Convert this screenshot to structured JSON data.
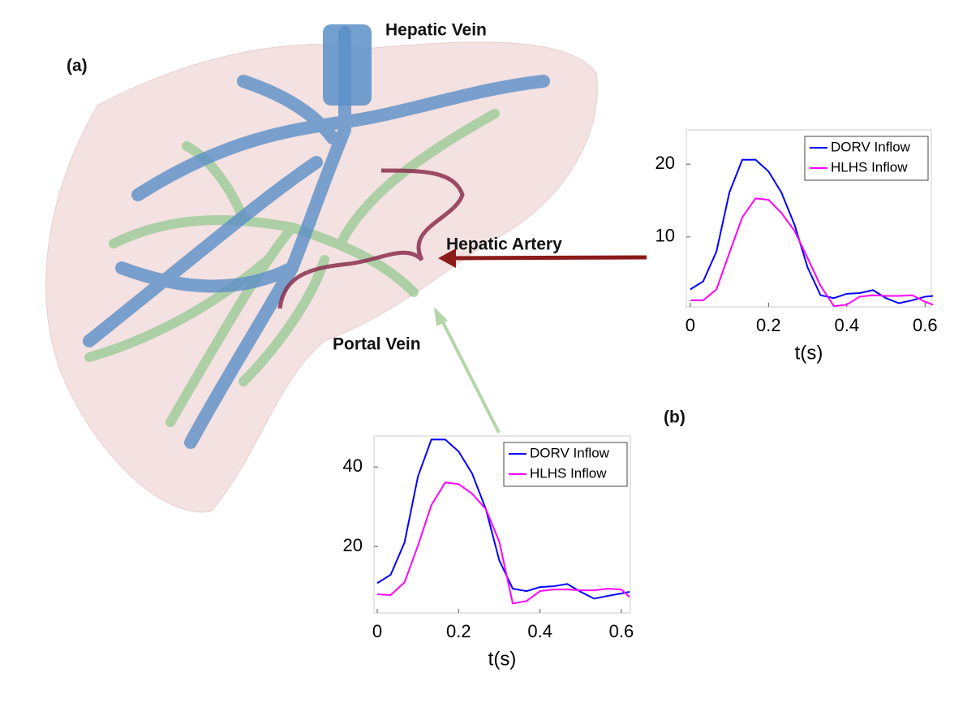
{
  "labels": {
    "panel_a": "(a)",
    "panel_b": "(b)",
    "hepatic_vein": "Hepatic Vein",
    "hepatic_artery": "Hepatic Artery",
    "portal_vein": "Portal Vein"
  },
  "chart_data": [
    {
      "type": "line",
      "title": "Hepatic Artery",
      "xlabel": "t(s)",
      "x": [
        0,
        0.033,
        0.067,
        0.1,
        0.133,
        0.167,
        0.2,
        0.233,
        0.267,
        0.3,
        0.333,
        0.367,
        0.4,
        0.433,
        0.467,
        0.5,
        0.533,
        0.567,
        0.6,
        0.62
      ],
      "xlim": [
        -0.01,
        0.616
      ],
      "xticks": [
        0,
        0.2,
        0.4,
        0.6
      ],
      "ylim": [
        0.4,
        24.7
      ],
      "yticks": [
        10,
        20
      ],
      "legend": "upper right",
      "series": [
        {
          "name": "DORV Inflow",
          "color": "#0000ff",
          "values": [
            2.8,
            3.9,
            8.0,
            16.1,
            20.6,
            20.6,
            19.0,
            16.1,
            11.6,
            5.8,
            2.0,
            1.6,
            2.2,
            2.3,
            2.7,
            1.6,
            0.9,
            1.3,
            1.8,
            1.9
          ]
        },
        {
          "name": "HLHS Inflow",
          "color": "#ff00ff",
          "values": [
            1.3,
            1.3,
            2.8,
            7.8,
            12.7,
            15.3,
            15.1,
            13.3,
            10.8,
            7.1,
            3.3,
            0.5,
            0.7,
            1.8,
            2.0,
            1.9,
            1.9,
            2.0,
            1.1,
            0.7
          ]
        }
      ]
    },
    {
      "type": "line",
      "title": "Portal Vein",
      "xlabel": "t(s)",
      "x": [
        0,
        0.033,
        0.067,
        0.1,
        0.133,
        0.167,
        0.2,
        0.233,
        0.267,
        0.3,
        0.333,
        0.367,
        0.4,
        0.433,
        0.467,
        0.5,
        0.533,
        0.567,
        0.6,
        0.62
      ],
      "xlim": [
        -0.008,
        0.622
      ],
      "xticks": [
        0,
        0.2,
        0.4,
        0.6
      ],
      "ylim": [
        3.3,
        47.8
      ],
      "yticks": [
        20,
        40
      ],
      "legend": "upper right",
      "series": [
        {
          "name": "DORV Inflow",
          "color": "#0000ff",
          "values": [
            10.8,
            12.9,
            21.0,
            37.6,
            46.9,
            46.9,
            43.9,
            38.4,
            29.4,
            16.5,
            9.4,
            8.8,
            9.8,
            10.0,
            10.6,
            8.6,
            6.9,
            7.6,
            8.2,
            8.6
          ]
        },
        {
          "name": "HLHS Inflow",
          "color": "#ff00ff",
          "values": [
            8.0,
            7.8,
            11.0,
            20.2,
            30.4,
            36.1,
            35.7,
            33.3,
            29.4,
            21.2,
            5.7,
            6.3,
            8.8,
            9.2,
            9.2,
            9.0,
            9.0,
            9.4,
            9.2,
            7.3
          ]
        }
      ]
    }
  ]
}
